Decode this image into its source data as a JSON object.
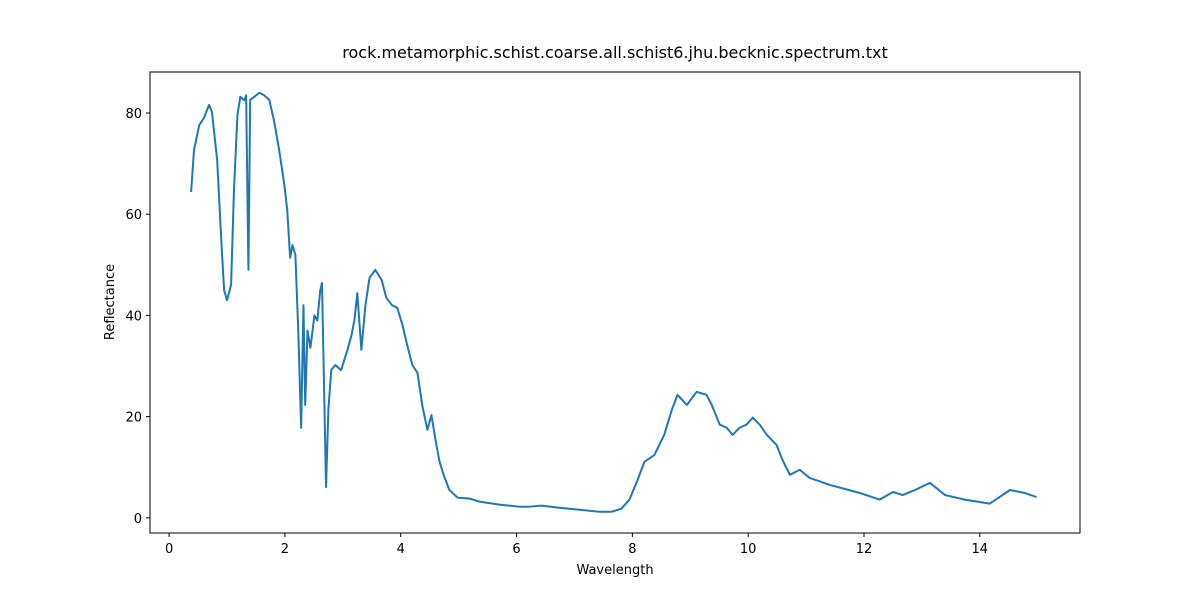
{
  "chart_data": {
    "type": "line",
    "title": "rock.metamorphic.schist.coarse.all.schist6.jhu.becknic.spectrum.txt",
    "xlabel": "Wavelength",
    "ylabel": "Reflectance",
    "color": "#1f77b4",
    "x": [
      0.38,
      0.43,
      0.52,
      0.6,
      0.69,
      0.74,
      0.83,
      0.9,
      0.95,
      1.0,
      1.07,
      1.12,
      1.18,
      1.23,
      1.3,
      1.33,
      1.37,
      1.4,
      1.47,
      1.56,
      1.64,
      1.73,
      1.81,
      1.9,
      1.99,
      2.04,
      2.09,
      2.13,
      2.18,
      2.23,
      2.28,
      2.32,
      2.35,
      2.39,
      2.44,
      2.51,
      2.56,
      2.61,
      2.64,
      2.68,
      2.71,
      2.75,
      2.8,
      2.87,
      2.97,
      3.08,
      3.15,
      3.2,
      3.25,
      3.32,
      3.39,
      3.46,
      3.56,
      3.67,
      3.75,
      3.85,
      3.94,
      4.03,
      4.11,
      4.2,
      4.29,
      4.37,
      4.46,
      4.53,
      4.6,
      4.67,
      4.74,
      4.84,
      4.98,
      5.19,
      5.36,
      5.7,
      6.05,
      6.22,
      6.43,
      6.74,
      7.09,
      7.43,
      7.64,
      7.81,
      7.95,
      8.09,
      8.21,
      8.38,
      8.55,
      8.68,
      8.78,
      8.94,
      9.11,
      9.28,
      9.37,
      9.51,
      9.63,
      9.73,
      9.85,
      9.97,
      10.08,
      10.2,
      10.32,
      10.49,
      10.59,
      10.72,
      10.89,
      11.06,
      11.41,
      11.93,
      12.27,
      12.5,
      12.67,
      12.88,
      13.14,
      13.4,
      13.74,
      14.17,
      14.52,
      14.78,
      14.98
    ],
    "values": [
      64.4,
      72.7,
      77.6,
      79,
      81.6,
      80.2,
      70.7,
      55,
      45,
      43,
      46,
      64.8,
      79.6,
      83.2,
      82.5,
      83.5,
      49,
      82.6,
      83.2,
      84,
      83.5,
      82.6,
      78.6,
      72.7,
      65.8,
      60.8,
      51.4,
      53.9,
      52,
      37.1,
      17.8,
      42,
      22.3,
      37,
      33.6,
      40,
      39,
      45,
      46.4,
      23.3,
      6.1,
      21.3,
      29.2,
      30.2,
      29.2,
      33.2,
      36.1,
      39.1,
      44.4,
      33.2,
      42,
      47.4,
      49,
      47,
      43.5,
      42,
      41.5,
      38.1,
      34.2,
      30.2,
      28.6,
      22.3,
      17.4,
      20.3,
      15.4,
      11.1,
      8.5,
      5.5,
      4,
      3.8,
      3.2,
      2.6,
      2.2,
      2.2,
      2.4,
      2,
      1.6,
      1.2,
      1.2,
      1.8,
      3.6,
      7.5,
      11.1,
      12.4,
      16.4,
      21.3,
      24.3,
      22.3,
      24.9,
      24.3,
      22.3,
      18.4,
      17.8,
      16.4,
      17.8,
      18.4,
      19.8,
      18.4,
      16.4,
      14.4,
      11.5,
      8.5,
      9.5,
      7.9,
      6.5,
      4.9,
      3.6,
      5.1,
      4.5,
      5.5,
      6.9,
      4.5,
      3.6,
      2.8,
      5.5,
      4.9,
      4.1
    ],
    "xlim": [
      -0.33,
      15.73
    ],
    "ylim": [
      -3.0,
      88.1
    ],
    "xticks": [
      0,
      2,
      4,
      6,
      8,
      10,
      12,
      14
    ],
    "yticks": [
      0,
      20,
      40,
      60,
      80
    ]
  }
}
